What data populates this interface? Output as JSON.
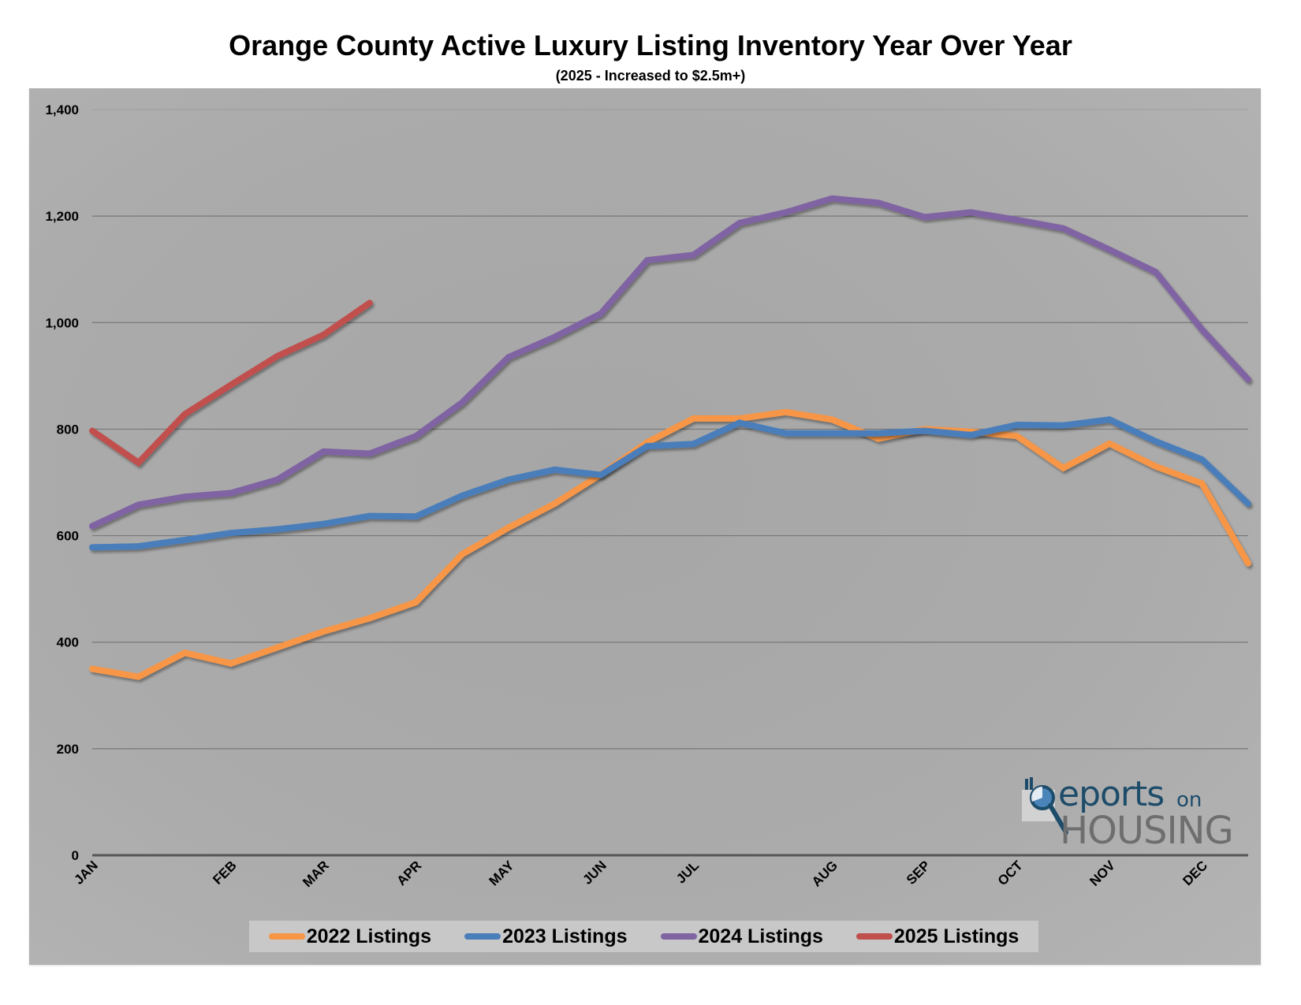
{
  "header": {
    "title": "Orange County Active Luxury Listing Inventory Year Over Year",
    "subtitle": "(2025 - Increased to $2.5m+)"
  },
  "logo": {
    "reports": "eports",
    "on": "on",
    "housing": "HOUSING",
    "r_letter": "R"
  },
  "colors": {
    "2022": "#f79646",
    "2023": "#4a7ebb",
    "2024": "#8064a2",
    "2025": "#c0504d",
    "background": "#a9a9a9",
    "gridline": "#777777",
    "axis": "#555555"
  },
  "chart_data": {
    "type": "line",
    "title": "Orange County Active Luxury Listing Inventory Year Over Year",
    "subtitle": "(2025 - Increased to $2.5m+)",
    "xlabel": "",
    "ylabel": "",
    "ylim": [
      0,
      1400
    ],
    "yticks": [
      0,
      200,
      400,
      600,
      800,
      1000,
      1200,
      1400
    ],
    "ytick_labels": [
      "0",
      "200",
      "400",
      "600",
      "800",
      "1,000",
      "1,200",
      "1,400"
    ],
    "x_point_count": 26,
    "month_ticks": [
      {
        "label": "JAN",
        "index": 0
      },
      {
        "label": "FEB",
        "index": 3
      },
      {
        "label": "MAR",
        "index": 5
      },
      {
        "label": "APR",
        "index": 7
      },
      {
        "label": "MAY",
        "index": 9
      },
      {
        "label": "JUN",
        "index": 11
      },
      {
        "label": "JUL",
        "index": 13
      },
      {
        "label": "AUG",
        "index": 16
      },
      {
        "label": "SEP",
        "index": 18
      },
      {
        "label": "OCT",
        "index": 20
      },
      {
        "label": "NOV",
        "index": 22
      },
      {
        "label": "DEC",
        "index": 24
      }
    ],
    "grid": true,
    "legend_position": "bottom",
    "series": [
      {
        "name": "2022 Listings",
        "key": "2022",
        "values": [
          350,
          335,
          380,
          360,
          390,
          420,
          445,
          475,
          565,
          615,
          660,
          715,
          775,
          820,
          820,
          832,
          818,
          782,
          800,
          795,
          787,
          727,
          773,
          730,
          698,
          548
        ]
      },
      {
        "name": "2023 Listings",
        "key": "2023",
        "values": [
          578,
          580,
          592,
          605,
          612,
          622,
          637,
          636,
          675,
          705,
          724,
          714,
          768,
          772,
          812,
          792,
          792,
          792,
          797,
          789,
          808,
          807,
          818,
          777,
          743,
          660
        ]
      },
      {
        "name": "2024 Listings",
        "key": "2024",
        "values": [
          618,
          658,
          673,
          680,
          705,
          758,
          754,
          787,
          850,
          935,
          973,
          1017,
          1117,
          1127,
          1187,
          1207,
          1233,
          1225,
          1198,
          1207,
          1193,
          1177,
          1137,
          1095,
          987,
          893
        ]
      },
      {
        "name": "2025 Listings",
        "key": "2025",
        "values": [
          797,
          737,
          828,
          883,
          937,
          977,
          1037
        ]
      }
    ]
  }
}
